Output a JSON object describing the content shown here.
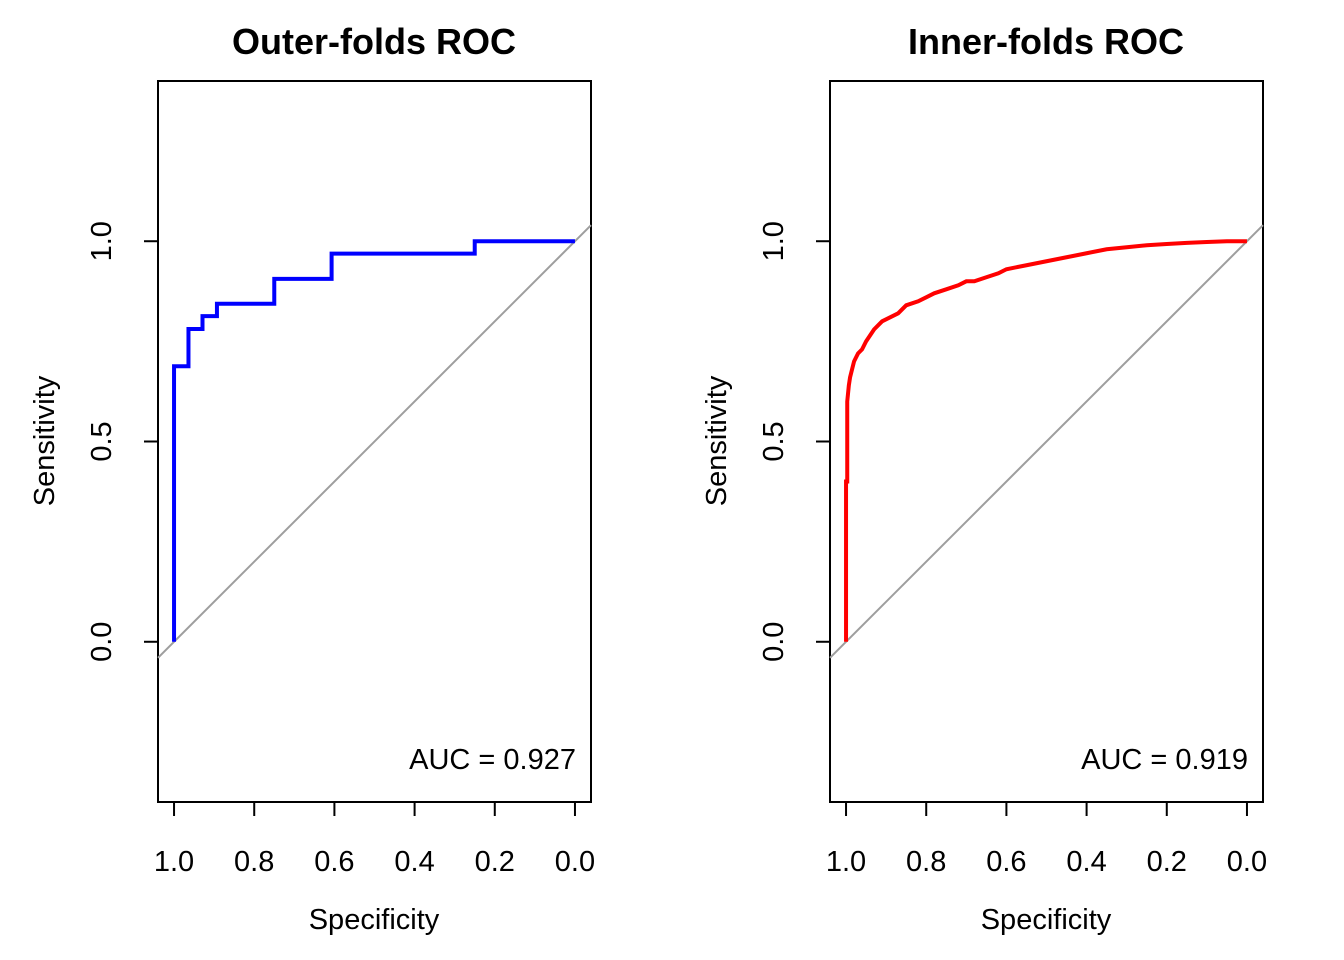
{
  "chart_data": [
    {
      "type": "line",
      "title": "Outer-folds ROC",
      "xlabel": "Specificity",
      "ylabel": "Sensitivity",
      "x_reversed": true,
      "xlim": [
        1.04,
        -0.04
      ],
      "ylim": [
        -0.4,
        1.4
      ],
      "xticks": [
        "1.0",
        "0.8",
        "0.6",
        "0.4",
        "0.2",
        "0.0"
      ],
      "yticks": [
        "0.0",
        "0.5",
        "1.0"
      ],
      "annotation": "AUC = 0.927",
      "color": "#0000ff",
      "reference_line_color": "#9e9e9e",
      "series": [
        {
          "specificity": [
            1.0,
            1.0,
            0.964,
            0.964,
            0.929,
            0.929,
            0.893,
            0.893,
            0.75,
            0.75,
            0.607,
            0.607,
            0.25,
            0.25,
            0.0
          ],
          "sensitivity": [
            0.0,
            0.688,
            0.688,
            0.781,
            0.781,
            0.813,
            0.813,
            0.844,
            0.844,
            0.906,
            0.906,
            0.969,
            0.969,
            1.0,
            1.0
          ]
        }
      ]
    },
    {
      "type": "line",
      "title": "Inner-folds ROC",
      "xlabel": "Specificity",
      "ylabel": "Sensitivity",
      "x_reversed": true,
      "xlim": [
        1.04,
        -0.04
      ],
      "ylim": [
        -0.4,
        1.4
      ],
      "xticks": [
        "1.0",
        "0.8",
        "0.6",
        "0.4",
        "0.2",
        "0.0"
      ],
      "yticks": [
        "0.0",
        "0.5",
        "1.0"
      ],
      "annotation": "AUC = 0.919",
      "color": "#ff0000",
      "reference_line_color": "#9e9e9e",
      "series": [
        {
          "specificity": [
            1.0,
            1.0,
            0.997,
            0.997,
            0.995,
            0.993,
            0.99,
            0.985,
            0.98,
            0.975,
            0.97,
            0.96,
            0.95,
            0.93,
            0.91,
            0.89,
            0.87,
            0.85,
            0.82,
            0.8,
            0.78,
            0.75,
            0.72,
            0.7,
            0.68,
            0.65,
            0.62,
            0.6,
            0.55,
            0.5,
            0.45,
            0.4,
            0.35,
            0.3,
            0.25,
            0.2,
            0.15,
            0.1,
            0.05,
            0.0
          ],
          "sensitivity": [
            0.0,
            0.4,
            0.4,
            0.6,
            0.62,
            0.64,
            0.66,
            0.68,
            0.7,
            0.71,
            0.72,
            0.73,
            0.75,
            0.78,
            0.8,
            0.81,
            0.82,
            0.84,
            0.85,
            0.86,
            0.87,
            0.88,
            0.89,
            0.9,
            0.9,
            0.91,
            0.92,
            0.93,
            0.94,
            0.95,
            0.96,
            0.97,
            0.98,
            0.985,
            0.99,
            0.993,
            0.996,
            0.998,
            1.0,
            1.0
          ]
        }
      ]
    }
  ]
}
